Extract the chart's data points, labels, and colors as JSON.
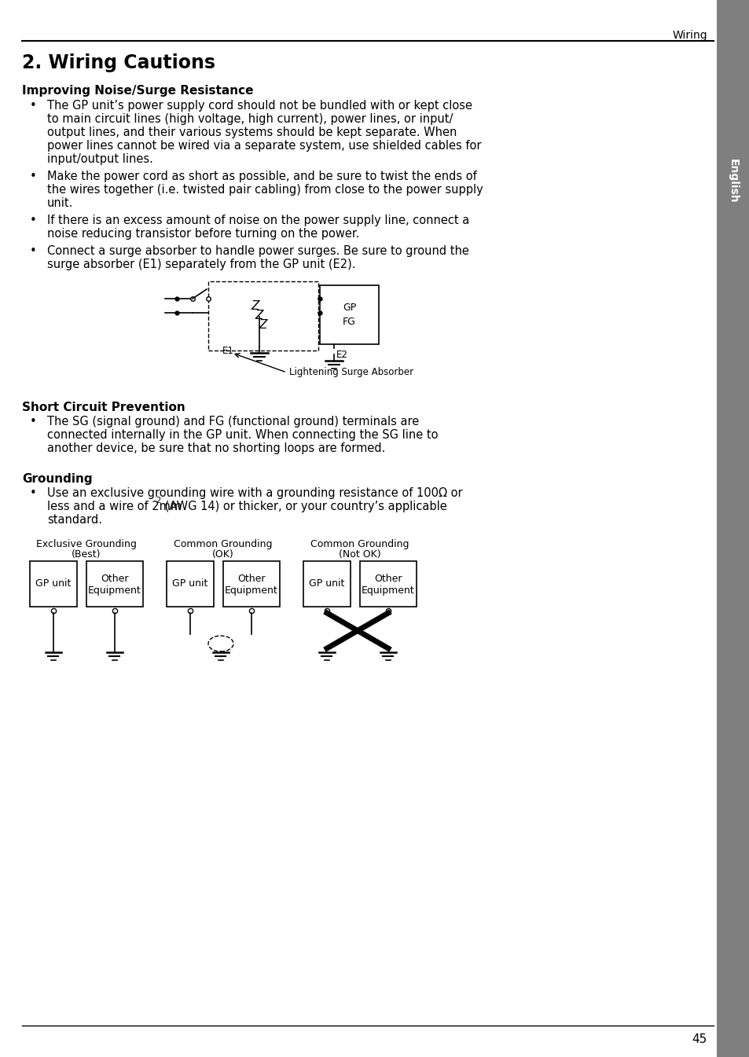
{
  "page_header": "Wiring",
  "page_number": "45",
  "title": "2. Wiring Cautions",
  "section1_heading": "Improving Noise/Surge Resistance",
  "bullet1_line1": "The GP unit’s power supply cord should not be bundled with or kept close",
  "bullet1_line2": "to main circuit lines (high voltage, high current), power lines, or input/",
  "bullet1_line3": "output lines, and their various systems should be kept separate. When",
  "bullet1_line4": "power lines cannot be wired via a separate system, use shielded cables for",
  "bullet1_line5": "input/output lines.",
  "bullet2_line1": "Make the power cord as short as possible, and be sure to twist the ends of",
  "bullet2_line2": "the wires together (i.e. twisted pair cabling) from close to the power supply",
  "bullet2_line3": "unit.",
  "bullet3_line1": "If there is an excess amount of noise on the power supply line, connect a",
  "bullet3_line2": "noise reducing transistor before turning on the power.",
  "bullet4_line1": "Connect a surge absorber to handle power surges. Be sure to ground the",
  "bullet4_line2": "surge absorber (E1) separately from the GP unit (E2).",
  "diagram_label": "Lightening Surge Absorber",
  "section2_heading": "Short Circuit Prevention",
  "bullet5_line1": "The SG (signal ground) and FG (functional ground) terminals are",
  "bullet5_line2": "connected internally in the GP unit. When connecting the SG line to",
  "bullet5_line3": "another device, be sure that no shorting loops are formed.",
  "section3_heading": "Grounding",
  "bullet6_line1": "Use an exclusive grounding wire with a grounding resistance of 100Ω or",
  "bullet6_line2a": "less and a wire of 2mm",
  "bullet6_line2b": " (AWG 14) or thicker, or your country’s applicable",
  "bullet6_line3": "standard.",
  "grounding_label1a": "Exclusive Grounding",
  "grounding_label1b": "(Best)",
  "grounding_label2a": "Common Grounding",
  "grounding_label2b": "(OK)",
  "grounding_label3a": "Common Grounding",
  "grounding_label3b": "(Not OK)",
  "gp_unit": "GP unit",
  "other_equip_line1": "Other",
  "other_equip_line2": "Equipment",
  "sidebar_text": "English",
  "bg_color": "#ffffff",
  "text_color": "#000000",
  "sidebar_color": "#7f7f7f"
}
